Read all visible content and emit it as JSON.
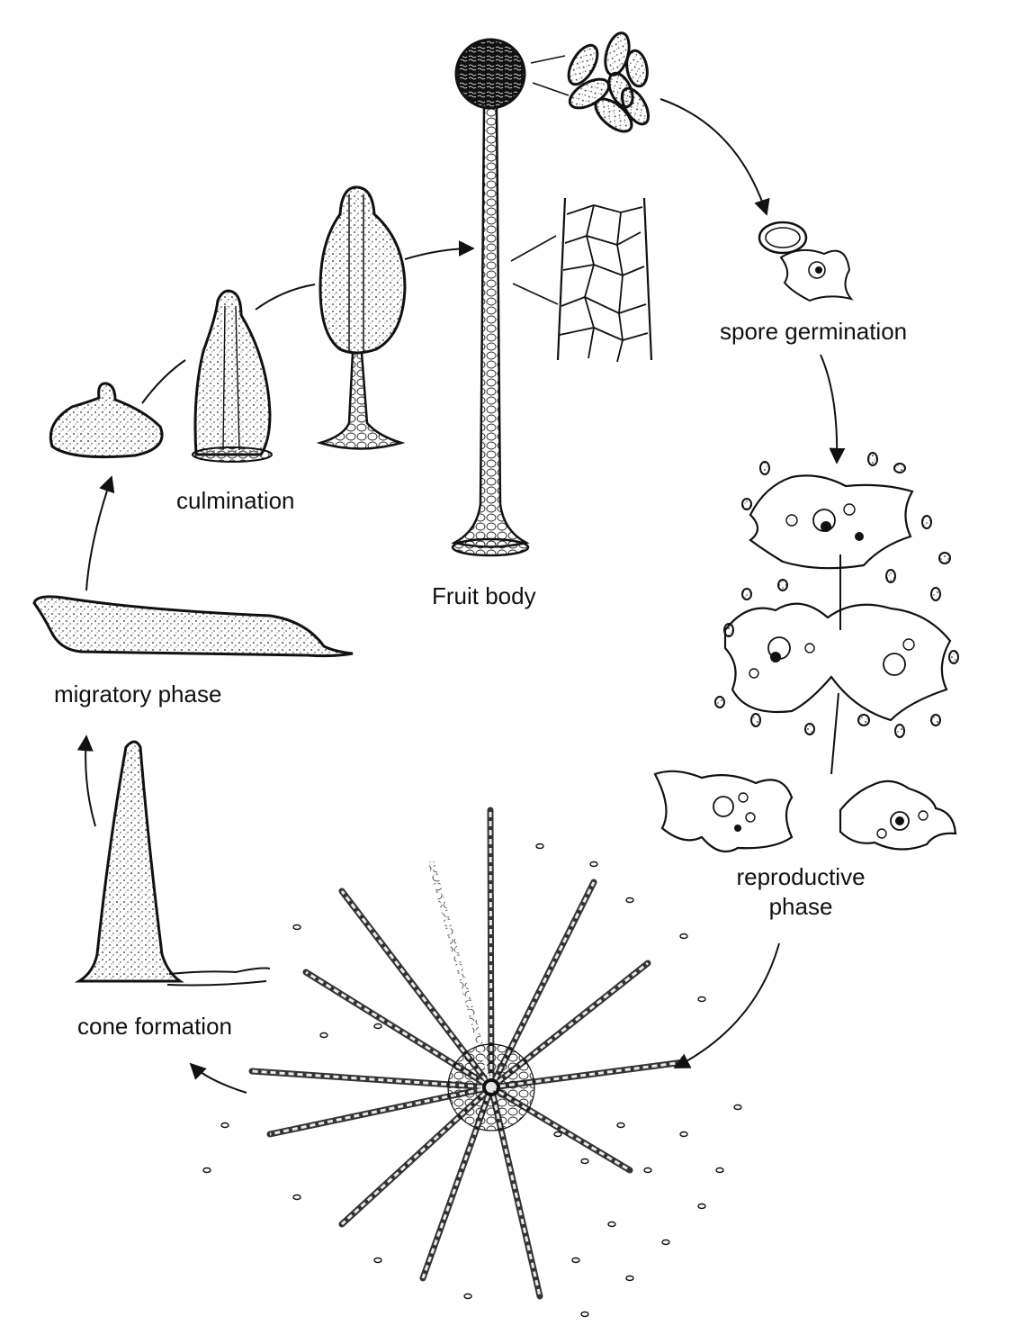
{
  "labels": {
    "spore_germination": "spore germination",
    "culmination": "culmination",
    "fruit_body": "Fruit body",
    "migratory_phase": "migratory phase",
    "reproductive_phase_line1": "reproductive",
    "reproductive_phase_line2": "phase",
    "cone_formation": "cone formation"
  },
  "colors": {
    "ink": "#111111",
    "paper": "#ffffff"
  }
}
